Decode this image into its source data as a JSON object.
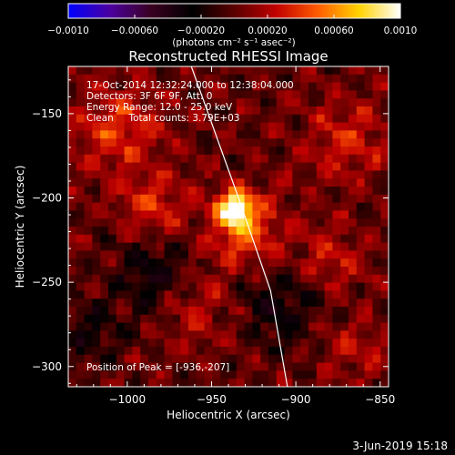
{
  "colorbar": {
    "ticks": [
      "−0.0010",
      "−0.00060",
      "−0.00020",
      "0.00020",
      "0.00060",
      "0.0010"
    ],
    "tick_values": [
      -0.001,
      -0.0006,
      -0.0002,
      0.0002,
      0.0006,
      0.001
    ],
    "range": [
      -0.001,
      0.001
    ],
    "unit_label": "(photons cm⁻² s⁻¹ asec⁻²)",
    "stops": [
      "#0000ff",
      "#4b00a0",
      "#3a0020",
      "#000000",
      "#5a0000",
      "#c00000",
      "#ff5a00",
      "#ffd200",
      "#ffffff"
    ]
  },
  "annotations": {
    "time_range": "17-Oct-2014 12:32:24.000 to 12:38:04.000",
    "detectors": "Detectors: 3F 6F 9F, Att: 0",
    "energy": "Energy Range: 12.0 - 25.0 keV",
    "clean": "Clean     Total counts: 3.79E+03",
    "peak": "Position of Peak = [-936,-207]"
  },
  "footer": {
    "date": "3-Jun-2019 15:18"
  },
  "chart_data": {
    "type": "heatmap",
    "title": "Reconstructed RHESSI Image",
    "xlabel": "Heliocentric X (arcsec)",
    "ylabel": "Heliocentric Y (arcsec)",
    "xlim": [
      -1035,
      -845
    ],
    "ylim": [
      -312,
      -122
    ],
    "x_ticks": [
      -1000,
      -950,
      -900,
      -850
    ],
    "y_ticks": [
      -150,
      -200,
      -250,
      -300
    ],
    "x_tick_labels": [
      "−1000",
      "−950",
      "−900",
      "−850"
    ],
    "y_tick_labels": [
      "−150",
      "−200",
      "−250",
      "−300"
    ],
    "peak": {
      "x": -936,
      "y": -207,
      "value": 0.001
    },
    "limb_curve": [
      [
        -962,
        -122
      ],
      [
        -934,
        -200
      ],
      [
        -915,
        -255
      ],
      [
        -905,
        -312
      ]
    ],
    "sources": [
      {
        "x": -936,
        "y": -207,
        "amp": 0.00095,
        "sigma": 7
      },
      {
        "x": -930,
        "y": -218,
        "amp": 0.00045,
        "sigma": 15
      },
      {
        "x": -1005,
        "y": -160,
        "amp": 0.00035,
        "sigma": 18
      },
      {
        "x": -985,
        "y": -205,
        "amp": 0.0003,
        "sigma": 14
      },
      {
        "x": -870,
        "y": -165,
        "amp": 0.0003,
        "sigma": 16
      },
      {
        "x": -880,
        "y": -235,
        "amp": 0.00025,
        "sigma": 14
      },
      {
        "x": -960,
        "y": -265,
        "amp": 0.00022,
        "sigma": 16
      },
      {
        "x": -865,
        "y": -290,
        "amp": 0.0002,
        "sigma": 14
      },
      {
        "x": -985,
        "y": -245,
        "amp": -0.0003,
        "sigma": 16
      },
      {
        "x": -910,
        "y": -265,
        "amp": -0.0003,
        "sigma": 16
      },
      {
        "x": -1020,
        "y": -280,
        "amp": -0.00022,
        "sigma": 14
      }
    ]
  }
}
